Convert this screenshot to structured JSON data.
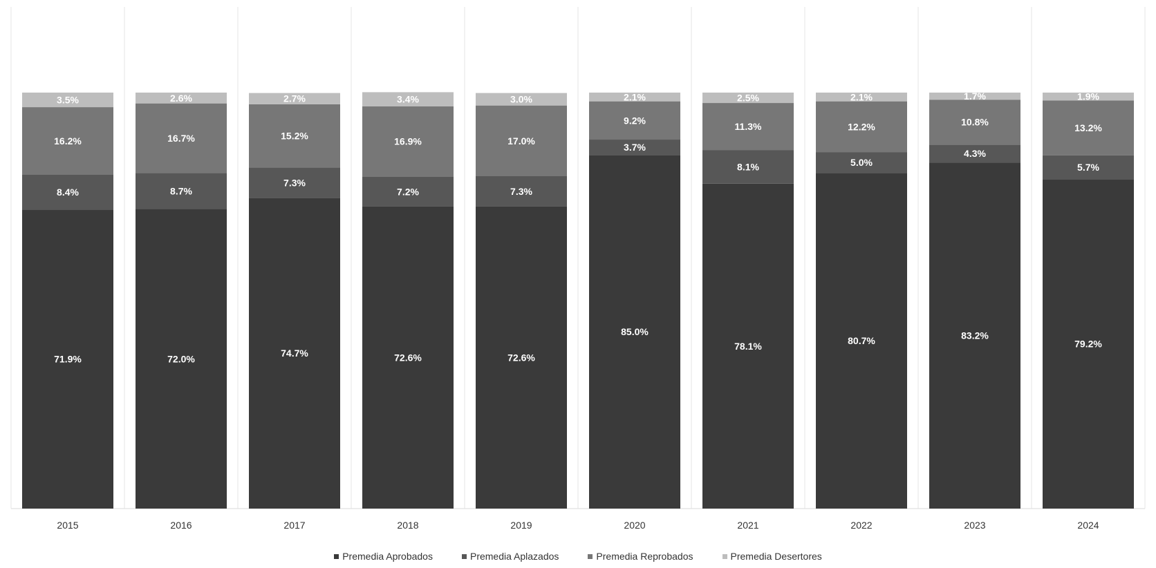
{
  "chart_data": {
    "type": "bar",
    "stacked": true,
    "title": "",
    "xlabel": "",
    "ylabel": "",
    "ylim": [
      0,
      100
    ],
    "grid": "vertical separators",
    "legend_position": "bottom",
    "categories": [
      "2015",
      "2016",
      "2017",
      "2018",
      "2019",
      "2020",
      "2021",
      "2022",
      "2023",
      "2024"
    ],
    "series": [
      {
        "name": "Premedia Aprobados",
        "color": "#3a3a3a",
        "label_color": "#ffffff",
        "values": [
          71.9,
          72.0,
          74.7,
          72.6,
          72.6,
          85.0,
          78.1,
          80.7,
          83.2,
          79.2
        ],
        "labels": [
          "71.9%",
          "72.0%",
          "74.7%",
          "72.6%",
          "72.6%",
          "85.0%",
          "78.1%",
          "80.7%",
          "83.2%",
          "79.2%"
        ]
      },
      {
        "name": "Premedia Aplazados",
        "color": "#575757",
        "label_color": "#ffffff",
        "values": [
          8.4,
          8.7,
          7.3,
          7.2,
          7.3,
          3.7,
          8.1,
          5.0,
          4.3,
          5.7
        ],
        "labels": [
          "8.4%",
          "8.7%",
          "7.3%",
          "7.2%",
          "7.3%",
          "3.7%",
          "8.1%",
          "5.0%",
          "4.3%",
          "5.7%"
        ]
      },
      {
        "name": "Premedia Reprobados",
        "color": "#777777",
        "label_color": "#ffffff",
        "values": [
          16.2,
          16.7,
          15.2,
          16.9,
          17.0,
          9.2,
          11.3,
          12.2,
          10.8,
          13.2
        ],
        "labels": [
          "16.2%",
          "16.7%",
          "15.2%",
          "16.9%",
          "17.0%",
          "9.2%",
          "11.3%",
          "12.2%",
          "10.8%",
          "13.2%"
        ]
      },
      {
        "name": "Premedia Desertores",
        "color": "#bdbdbd",
        "label_color": "#ffffff",
        "values": [
          3.5,
          2.6,
          2.7,
          3.4,
          3.0,
          2.1,
          2.5,
          2.1,
          1.7,
          1.9
        ],
        "labels": [
          "3.5%",
          "2.6%",
          "2.7%",
          "3.4%",
          "3.0%",
          "2.1%",
          "2.5%",
          "2.1%",
          "1.7%",
          "1.9%"
        ]
      }
    ]
  }
}
